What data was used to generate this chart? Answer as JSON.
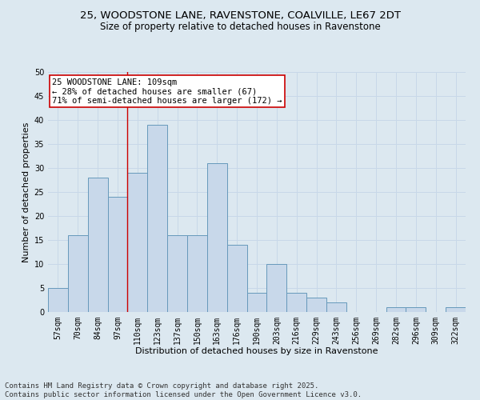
{
  "title1": "25, WOODSTONE LANE, RAVENSTONE, COALVILLE, LE67 2DT",
  "title2": "Size of property relative to detached houses in Ravenstone",
  "xlabel": "Distribution of detached houses by size in Ravenstone",
  "ylabel": "Number of detached properties",
  "categories": [
    "57sqm",
    "70sqm",
    "84sqm",
    "97sqm",
    "110sqm",
    "123sqm",
    "137sqm",
    "150sqm",
    "163sqm",
    "176sqm",
    "190sqm",
    "203sqm",
    "216sqm",
    "229sqm",
    "243sqm",
    "256sqm",
    "269sqm",
    "282sqm",
    "296sqm",
    "309sqm",
    "322sqm"
  ],
  "values": [
    5,
    16,
    28,
    24,
    29,
    39,
    16,
    16,
    31,
    14,
    4,
    10,
    4,
    3,
    2,
    0,
    0,
    1,
    1,
    0,
    1
  ],
  "bar_color": "#c8d8ea",
  "bar_edge_color": "#6699bb",
  "ref_line_x": 4,
  "ref_line_color": "#cc0000",
  "annotation_text": "25 WOODSTONE LANE: 109sqm\n← 28% of detached houses are smaller (67)\n71% of semi-detached houses are larger (172) →",
  "annotation_box_color": "#ffffff",
  "annotation_box_edge": "#cc0000",
  "ylim": [
    0,
    50
  ],
  "yticks": [
    0,
    5,
    10,
    15,
    20,
    25,
    30,
    35,
    40,
    45,
    50
  ],
  "grid_color": "#c8d8e8",
  "background_color": "#dce8f0",
  "footer": "Contains HM Land Registry data © Crown copyright and database right 2025.\nContains public sector information licensed under the Open Government Licence v3.0.",
  "title_fontsize": 9.5,
  "subtitle_fontsize": 8.5,
  "axis_label_fontsize": 8,
  "tick_fontsize": 7,
  "annotation_fontsize": 7.5,
  "footer_fontsize": 6.5
}
